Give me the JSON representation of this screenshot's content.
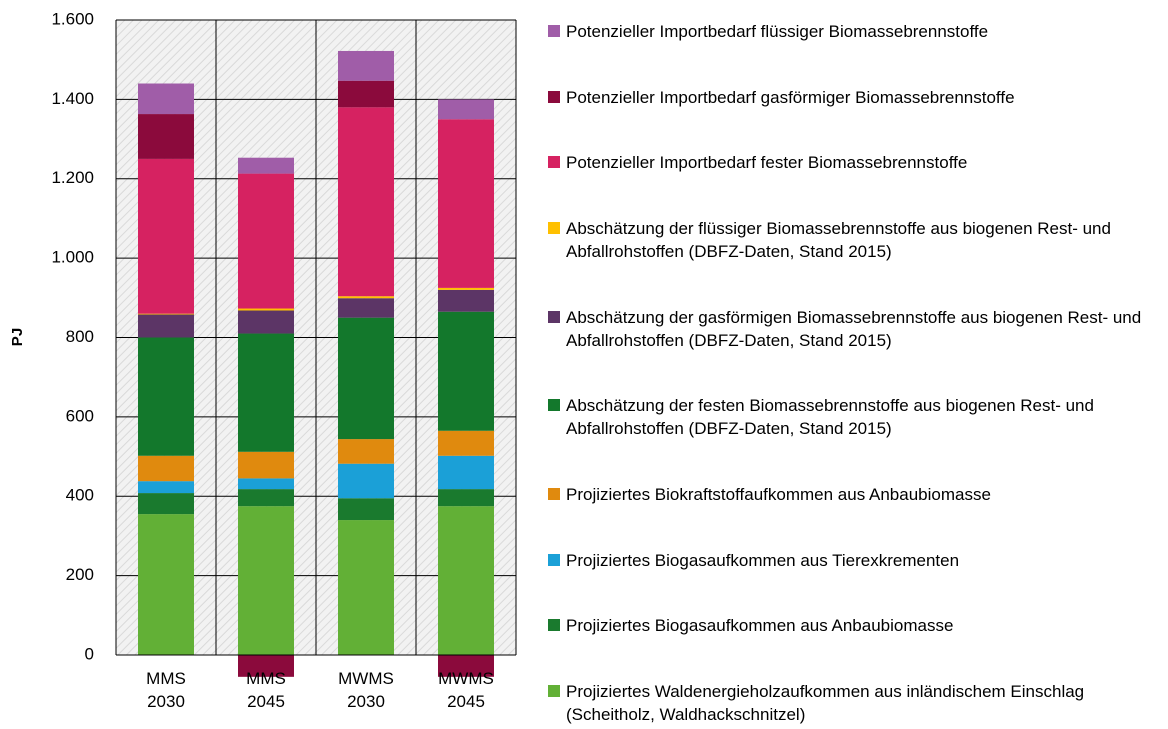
{
  "chart_data": {
    "type": "stacked-bar",
    "ylabel": "PJ",
    "categories": [
      "MMS 2030",
      "MMS 2045",
      "MWMS 2030",
      "MWMS 2045"
    ],
    "ylim": [
      0,
      1600
    ],
    "yticks": [
      0,
      200,
      400,
      600,
      800,
      {
        "value": 1000,
        "label": "1.000"
      },
      {
        "value": 1200,
        "label": "1.200"
      },
      {
        "value": 1400,
        "label": "1.400"
      },
      {
        "value": 1600,
        "label": "1.600"
      }
    ],
    "grid": true,
    "series": [
      {
        "name": "Projiziertes Waldenergieholzaufkommen aus inländischem Einschlag (Scheitholz, Waldhackschnitzel)",
        "color": "#62b036",
        "values": [
          355,
          375,
          340,
          375
        ]
      },
      {
        "name": "Projiziertes Biogasaufkommen aus Anbaubiomasse",
        "color": "#1a7a2e",
        "values": [
          53,
          43,
          55,
          43
        ]
      },
      {
        "name": "Projiziertes Biogasaufkommen aus Tierexkrementen",
        "color": "#1ba0d7",
        "values": [
          30,
          27,
          87,
          84
        ]
      },
      {
        "name": "Projiziertes Biokraftstoffaufkommen aus Anbaubiomasse",
        "color": "#e08a0e",
        "values": [
          64,
          67,
          62,
          63
        ]
      },
      {
        "name": "Abschätzung der festen Biomassebrennstoffe aus biogenen Rest- und Abfallrohstoffen (DBFZ-Daten, Stand 2015)",
        "color": "#13782c",
        "values": [
          298,
          298,
          306,
          300
        ]
      },
      {
        "name": "Abschätzung der gasförmigen Biomassebrennstoffe aus biogenen Rest- und Abfallrohstoffen (DBFZ-Daten, Stand 2015)",
        "color": "#5c3566",
        "values": [
          58,
          58,
          49,
          55
        ]
      },
      {
        "name": "Abschätzung der flüssiger Biomassebrennstoffe aus biogenen Rest- und Abfallrohstoffen (DBFZ-Daten, Stand 2015)",
        "color": "#ffc000",
        "values": [
          2,
          5,
          5,
          5
        ]
      },
      {
        "name": "Potenzieller Importbedarf fester Biomassebrennstoffe",
        "color": "#d62261",
        "values": [
          390,
          340,
          476,
          425
        ]
      },
      {
        "name": "Potenzieller Importbedarf gasförmiger Biomassebrennstoffe",
        "color": "#8b0a3c",
        "values": [
          113,
          -55,
          67,
          -55
        ]
      },
      {
        "name": "Potenzieller Importbedarf flüssiger Biomassebrennstoffe",
        "color": "#a05da8",
        "values": [
          77,
          40,
          75,
          50
        ]
      }
    ]
  }
}
